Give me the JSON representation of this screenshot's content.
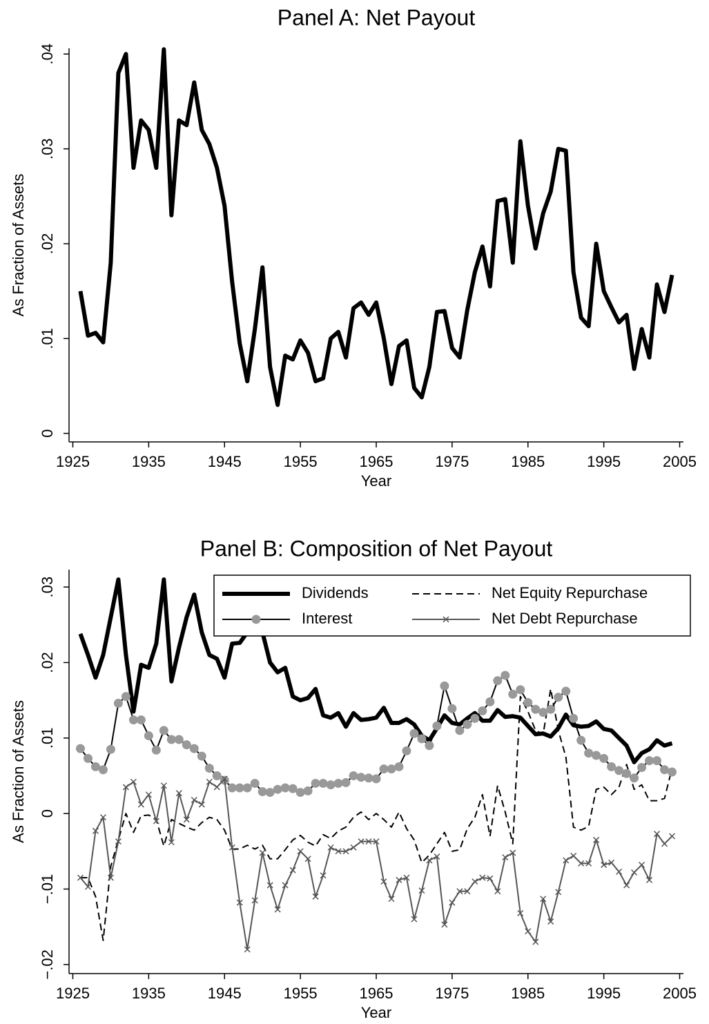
{
  "chart_data": [
    {
      "type": "line",
      "title": "Panel A: Net Payout",
      "xlabel": "Year",
      "ylabel": "As Fraction of Assets",
      "x": [
        1926,
        1927,
        1928,
        1929,
        1930,
        1931,
        1932,
        1933,
        1934,
        1935,
        1936,
        1937,
        1938,
        1939,
        1940,
        1941,
        1942,
        1943,
        1944,
        1945,
        1946,
        1947,
        1948,
        1949,
        1950,
        1951,
        1952,
        1953,
        1954,
        1955,
        1956,
        1957,
        1958,
        1959,
        1960,
        1961,
        1962,
        1963,
        1964,
        1965,
        1966,
        1967,
        1968,
        1969,
        1970,
        1971,
        1972,
        1973,
        1974,
        1975,
        1976,
        1977,
        1978,
        1979,
        1980,
        1981,
        1982,
        1983,
        1984,
        1985,
        1986,
        1987,
        1988,
        1989,
        1990,
        1991,
        1992,
        1993,
        1994,
        1995,
        1996,
        1997,
        1998,
        1999,
        2000,
        2001,
        2002,
        2003,
        2004
      ],
      "values": [
        0.015,
        0.0103,
        0.0106,
        0.0096,
        0.018,
        0.038,
        0.04,
        0.028,
        0.033,
        0.032,
        0.028,
        0.0405,
        0.023,
        0.033,
        0.0325,
        0.037,
        0.032,
        0.0305,
        0.028,
        0.024,
        0.016,
        0.0095,
        0.0055,
        0.011,
        0.0175,
        0.007,
        0.003,
        0.0082,
        0.0078,
        0.0098,
        0.0085,
        0.0055,
        0.0058,
        0.01,
        0.0107,
        0.008,
        0.0132,
        0.0138,
        0.0125,
        0.0138,
        0.01,
        0.0052,
        0.0092,
        0.0098,
        0.0048,
        0.0038,
        0.007,
        0.0128,
        0.0129,
        0.009,
        0.008,
        0.013,
        0.017,
        0.0197,
        0.0155,
        0.0245,
        0.0247,
        0.018,
        0.0308,
        0.024,
        0.0195,
        0.0232,
        0.0255,
        0.03,
        0.0298,
        0.017,
        0.0122,
        0.0113,
        0.02,
        0.015,
        0.0133,
        0.0117,
        0.0125,
        0.0068,
        0.011,
        0.008,
        0.0157,
        0.0128,
        0.0167
      ],
      "color": "#000000",
      "style": "thick",
      "xlim": [
        1924.5,
        2005.5
      ],
      "xticks": [
        1925,
        1935,
        1945,
        1955,
        1965,
        1975,
        1985,
        1995,
        2005
      ],
      "ylim": [
        -0.0009,
        0.0406
      ],
      "yticks": [
        0,
        {
          "value": 0.01,
          "label": ".01"
        },
        {
          "value": 0.02,
          "label": ".02"
        },
        {
          "value": 0.03,
          "label": ".03"
        },
        {
          "value": 0.04,
          "label": ".04"
        }
      ]
    },
    {
      "type": "line",
      "title": "Panel B: Composition of Net Payout",
      "xlabel": "Year",
      "ylabel": "As Fraction of Assets",
      "x": [
        1926,
        1927,
        1928,
        1929,
        1930,
        1931,
        1932,
        1933,
        1934,
        1935,
        1936,
        1937,
        1938,
        1939,
        1940,
        1941,
        1942,
        1943,
        1944,
        1945,
        1946,
        1947,
        1948,
        1949,
        1950,
        1951,
        1952,
        1953,
        1954,
        1955,
        1956,
        1957,
        1958,
        1959,
        1960,
        1961,
        1962,
        1963,
        1964,
        1965,
        1966,
        1967,
        1968,
        1969,
        1970,
        1971,
        1972,
        1973,
        1974,
        1975,
        1976,
        1977,
        1978,
        1979,
        1980,
        1981,
        1982,
        1983,
        1984,
        1985,
        1986,
        1987,
        1988,
        1989,
        1990,
        1991,
        1992,
        1993,
        1994,
        1995,
        1996,
        1997,
        1998,
        1999,
        2000,
        2001,
        2002,
        2003,
        2004
      ],
      "series": [
        {
          "name": "Dividends",
          "color": "#000000",
          "style": "thick",
          "values": [
            0.0238,
            0.021,
            0.018,
            0.021,
            0.026,
            0.031,
            0.021,
            0.0135,
            0.0197,
            0.0193,
            0.0225,
            0.031,
            0.0175,
            0.022,
            0.026,
            0.029,
            0.024,
            0.021,
            0.0205,
            0.018,
            0.0225,
            0.0226,
            0.024,
            0.026,
            0.024,
            0.02,
            0.0187,
            0.0193,
            0.0155,
            0.015,
            0.0153,
            0.0165,
            0.013,
            0.0127,
            0.0133,
            0.0115,
            0.0133,
            0.0124,
            0.0125,
            0.0127,
            0.014,
            0.012,
            0.012,
            0.0125,
            0.0118,
            0.0103,
            0.0097,
            0.0113,
            0.013,
            0.012,
            0.0118,
            0.0126,
            0.0133,
            0.0123,
            0.0123,
            0.0137,
            0.0128,
            0.0129,
            0.0127,
            0.0116,
            0.0105,
            0.0106,
            0.0102,
            0.0113,
            0.0131,
            0.0117,
            0.0115,
            0.0116,
            0.0122,
            0.0112,
            0.011,
            0.01,
            0.009,
            0.0068,
            0.008,
            0.0085,
            0.0097,
            0.009,
            0.0093
          ]
        },
        {
          "name": "Net Equity Repurchase",
          "color": "#000000",
          "style": "dashed",
          "values": [
            -0.0085,
            -0.0085,
            -0.011,
            -0.0168,
            -0.007,
            -0.0035,
            0,
            -0.0025,
            -0.0003,
            -0.0002,
            -0.0008,
            -0.0043,
            -0.0008,
            -0.0013,
            -0.0018,
            -0.0022,
            -0.0012,
            -0.0005,
            -0.0008,
            -0.0022,
            -0.0047,
            -0.0047,
            -0.0042,
            -0.0047,
            -0.0042,
            -0.006,
            -0.006,
            -0.0048,
            -0.0035,
            -0.0029,
            -0.0038,
            -0.0043,
            -0.0028,
            -0.0033,
            -0.0023,
            -0.0018,
            -0.0005,
            0.0002,
            -0.0008,
            0,
            -0.0008,
            -0.0018,
            0.0002,
            -0.002,
            -0.0035,
            -0.0065,
            -0.0055,
            -0.004,
            -0.0025,
            -0.005,
            -0.0048,
            -0.002,
            -0.0005,
            0.0025,
            -0.003,
            0.0037,
            0.0002,
            -0.004,
            0.0155,
            0.0135,
            0.011,
            0.0105,
            0.0165,
            0.011,
            0.0075,
            -0.0018,
            -0.0022,
            -0.0017,
            0.0032,
            0.0035,
            0.0025,
            0.0035,
            0.0065,
            0.0032,
            0.0038,
            0.0017,
            0.0017,
            0.002,
            0.006
          ]
        },
        {
          "name": "Interest",
          "color": "#999999",
          "style": "solid",
          "marker": "circle",
          "values": [
            0.0086,
            0.0073,
            0.0062,
            0.0058,
            0.0085,
            0.0146,
            0.0155,
            0.0124,
            0.0124,
            0.0103,
            0.0084,
            0.011,
            0.0098,
            0.0098,
            0.0091,
            0.0086,
            0.0076,
            0.006,
            0.005,
            0.0044,
            0.0034,
            0.0034,
            0.0034,
            0.004,
            0.0029,
            0.0028,
            0.0032,
            0.0034,
            0.0033,
            0.0028,
            0.003,
            0.004,
            0.004,
            0.0038,
            0.004,
            0.0041,
            0.005,
            0.0048,
            0.0047,
            0.0046,
            0.0059,
            0.0059,
            0.0062,
            0.0083,
            0.0106,
            0.0099,
            0.009,
            0.0116,
            0.0169,
            0.0139,
            0.011,
            0.0118,
            0.0126,
            0.0136,
            0.0148,
            0.0176,
            0.0183,
            0.0158,
            0.0164,
            0.0147,
            0.0138,
            0.0134,
            0.0138,
            0.0154,
            0.0162,
            0.0126,
            0.0097,
            0.008,
            0.0077,
            0.0073,
            0.0062,
            0.0057,
            0.0053,
            0.0047,
            0.0061,
            0.007,
            0.007,
            0.0058,
            0.0055
          ]
        },
        {
          "name": "Net Debt Repurchase",
          "color": "#555555",
          "style": "solid",
          "marker": "x",
          "values": [
            -0.0085,
            -0.0097,
            -0.0023,
            -0.0005,
            -0.0085,
            -0.0037,
            0.0035,
            0.0042,
            0.0012,
            0.0025,
            -0.001,
            0.0037,
            -0.0038,
            0.0027,
            -0.0008,
            0.0018,
            0.0012,
            0.0042,
            0.0035,
            0.0046,
            -0.0045,
            -0.0118,
            -0.018,
            -0.0115,
            -0.0052,
            -0.0095,
            -0.0127,
            -0.0095,
            -0.0075,
            -0.005,
            -0.006,
            -0.011,
            -0.0082,
            -0.0045,
            -0.005,
            -0.005,
            -0.0045,
            -0.0037,
            -0.0037,
            -0.0037,
            -0.009,
            -0.0113,
            -0.0088,
            -0.0085,
            -0.014,
            -0.0102,
            -0.0062,
            -0.0057,
            -0.0147,
            -0.0118,
            -0.0103,
            -0.0103,
            -0.009,
            -0.0085,
            -0.0086,
            -0.0103,
            -0.0058,
            -0.0052,
            -0.0132,
            -0.0156,
            -0.017,
            -0.0113,
            -0.0143,
            -0.0104,
            -0.0062,
            -0.0056,
            -0.0066,
            -0.0066,
            -0.0035,
            -0.0068,
            -0.0065,
            -0.0077,
            -0.0095,
            -0.0078,
            -0.0068,
            -0.0088,
            -0.0027,
            -0.004,
            -0.003
          ]
        }
      ],
      "legend": "upper right",
      "xlim": [
        1924.5,
        2005.5
      ],
      "xticks": [
        1925,
        1935,
        1945,
        1955,
        1965,
        1975,
        1985,
        1995,
        2005
      ],
      "ylim": [
        -0.0212,
        0.0323
      ],
      "yticks": [
        {
          "value": -0.02,
          "label": "−.02"
        },
        {
          "value": -0.01,
          "label": "−.01"
        },
        0,
        {
          "value": 0.01,
          "label": ".01"
        },
        {
          "value": 0.02,
          "label": ".02"
        },
        {
          "value": 0.03,
          "label": ".03"
        }
      ]
    }
  ]
}
